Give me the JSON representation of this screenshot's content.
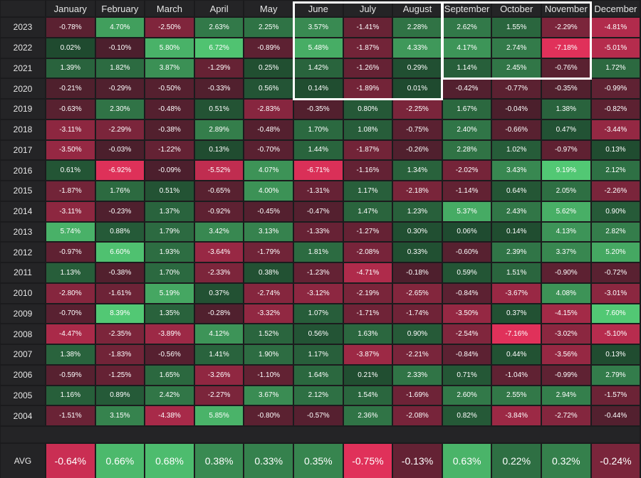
{
  "chart_data": {
    "type": "heatmap",
    "x_categories": [
      "January",
      "February",
      "March",
      "April",
      "May",
      "June",
      "July",
      "August",
      "September",
      "October",
      "November",
      "December"
    ],
    "y_categories": [
      "2023",
      "2022",
      "2021",
      "2020",
      "2019",
      "2018",
      "2017",
      "2016",
      "2015",
      "2014",
      "2013",
      "2012",
      "2011",
      "2010",
      "2009",
      "2008",
      "2007",
      "2006",
      "2005",
      "2004"
    ],
    "unit": "%",
    "values": [
      [
        -0.78,
        4.7,
        -2.5,
        2.63,
        2.25,
        3.57,
        -1.41,
        2.28,
        2.62,
        1.55,
        -2.29,
        -4.81
      ],
      [
        0.02,
        -0.1,
        5.8,
        6.72,
        -0.89,
        5.48,
        -1.87,
        4.33,
        4.17,
        2.74,
        -7.18,
        -5.01
      ],
      [
        1.39,
        1.82,
        3.87,
        -1.29,
        0.25,
        1.42,
        -1.26,
        0.29,
        1.14,
        2.45,
        -0.76,
        1.72
      ],
      [
        -0.21,
        -0.29,
        -0.5,
        -0.33,
        0.56,
        0.14,
        -1.89,
        0.01,
        -0.42,
        -0.77,
        -0.35,
        -0.99
      ],
      [
        -0.63,
        2.3,
        -0.48,
        0.51,
        -2.83,
        -0.35,
        0.8,
        -2.25,
        1.67,
        -0.04,
        1.38,
        -0.82
      ],
      [
        -3.11,
        -2.29,
        -0.38,
        2.89,
        -0.48,
        1.7,
        1.08,
        -0.75,
        2.4,
        -0.66,
        0.47,
        -3.44
      ],
      [
        -3.5,
        -0.03,
        -1.22,
        0.13,
        -0.7,
        1.44,
        -1.87,
        -0.26,
        2.28,
        1.02,
        -0.97,
        0.13
      ],
      [
        0.61,
        -6.92,
        -0.09,
        -5.52,
        4.07,
        -6.71,
        -1.16,
        1.34,
        -2.02,
        3.43,
        9.19,
        2.12
      ],
      [
        -1.87,
        1.76,
        0.51,
        -0.65,
        4.0,
        -1.31,
        1.17,
        -2.18,
        -1.14,
        0.64,
        2.05,
        -2.26
      ],
      [
        -3.11,
        -0.23,
        1.37,
        -0.92,
        -0.45,
        -0.47,
        1.47,
        1.23,
        5.37,
        2.43,
        5.62,
        0.9
      ],
      [
        5.74,
        0.88,
        1.79,
        3.42,
        3.13,
        -1.33,
        -1.27,
        0.3,
        0.06,
        0.14,
        4.13,
        2.82
      ],
      [
        -0.97,
        6.6,
        1.93,
        -3.64,
        -1.79,
        1.81,
        -2.08,
        0.33,
        -0.6,
        2.39,
        3.37,
        5.2
      ],
      [
        1.13,
        -0.38,
        1.7,
        -2.33,
        0.38,
        -1.23,
        -4.71,
        -0.18,
        0.59,
        1.51,
        -0.9,
        -0.72
      ],
      [
        -2.8,
        -1.61,
        5.19,
        0.37,
        -2.74,
        -3.12,
        -2.19,
        -2.65,
        -0.84,
        -3.67,
        4.08,
        -3.01
      ],
      [
        -0.7,
        8.39,
        1.35,
        -0.28,
        -3.32,
        1.07,
        -1.71,
        -1.74,
        -3.5,
        0.37,
        -4.15,
        7.6
      ],
      [
        -4.47,
        -2.35,
        -3.89,
        4.12,
        1.52,
        0.56,
        1.63,
        0.9,
        -2.54,
        -7.16,
        -3.02,
        -5.1
      ],
      [
        1.38,
        -1.83,
        -0.56,
        1.41,
        1.9,
        1.17,
        -3.87,
        -2.21,
        -0.84,
        0.44,
        -3.56,
        0.13
      ],
      [
        -0.59,
        -1.25,
        1.65,
        -3.26,
        -1.1,
        1.64,
        0.21,
        2.33,
        0.71,
        -1.04,
        -0.99,
        2.79
      ],
      [
        1.16,
        0.89,
        2.42,
        -2.27,
        3.67,
        2.12,
        1.54,
        -1.69,
        2.6,
        2.55,
        2.94,
        -1.57
      ],
      [
        -1.51,
        3.15,
        -4.38,
        5.85,
        -0.8,
        -0.57,
        2.36,
        -2.08,
        0.82,
        -3.84,
        -2.72,
        -0.44
      ]
    ],
    "avg_label": "AVG",
    "avg_values": [
      -0.64,
      0.66,
      0.68,
      0.38,
      0.33,
      0.35,
      -0.75,
      -0.13,
      0.63,
      0.22,
      0.32,
      -0.24
    ],
    "highlights": [
      {
        "months": [
          "June",
          "July",
          "August"
        ],
        "years": [
          "2023",
          "2022",
          "2021",
          "2020"
        ]
      },
      {
        "months": [
          "September",
          "October",
          "November"
        ],
        "years": [
          "2023",
          "2022",
          "2021"
        ]
      }
    ],
    "colors": {
      "positive_strong": "#52c874",
      "positive_weak": "#1f4a2f",
      "negative_strong": "#e0315a",
      "negative_weak": "#4a1f2c",
      "background": "#1b1b1d",
      "label_cell": "#242426",
      "highlight_border": "#ffffff"
    }
  }
}
